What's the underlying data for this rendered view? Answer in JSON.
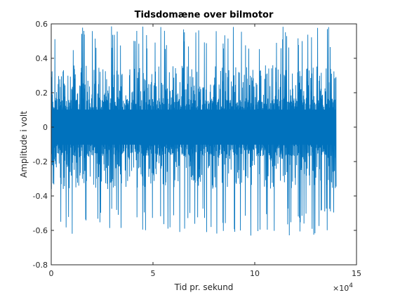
{
  "chart_data": {
    "type": "line",
    "title": "Tidsdomæne over bilmotor",
    "xlabel": "Tid pr. sekund",
    "ylabel": "Amplitude i volt",
    "x_exponent_label": "×10",
    "x_exponent_power": "4",
    "xlim": [
      0,
      15
    ],
    "ylim": [
      -0.8,
      0.6
    ],
    "x_ticks": [
      0,
      5,
      10,
      15
    ],
    "x_tick_labels": [
      "0",
      "5",
      "10",
      "15"
    ],
    "y_ticks": [
      -0.8,
      -0.6,
      -0.4,
      -0.2,
      0,
      0.2,
      0.4,
      0.6
    ],
    "y_tick_labels": [
      "-0.8",
      "-0.6",
      "-0.4",
      "-0.2",
      "0",
      "0.2",
      "0.4",
      "0.6"
    ],
    "grid": false,
    "series": [
      {
        "color": "#0072BD",
        "x_range": [
          0,
          14
        ],
        "samples": 1400,
        "band": 0.12,
        "typical_peak": 0.3,
        "max": 0.59,
        "min": -0.63
      }
    ]
  }
}
